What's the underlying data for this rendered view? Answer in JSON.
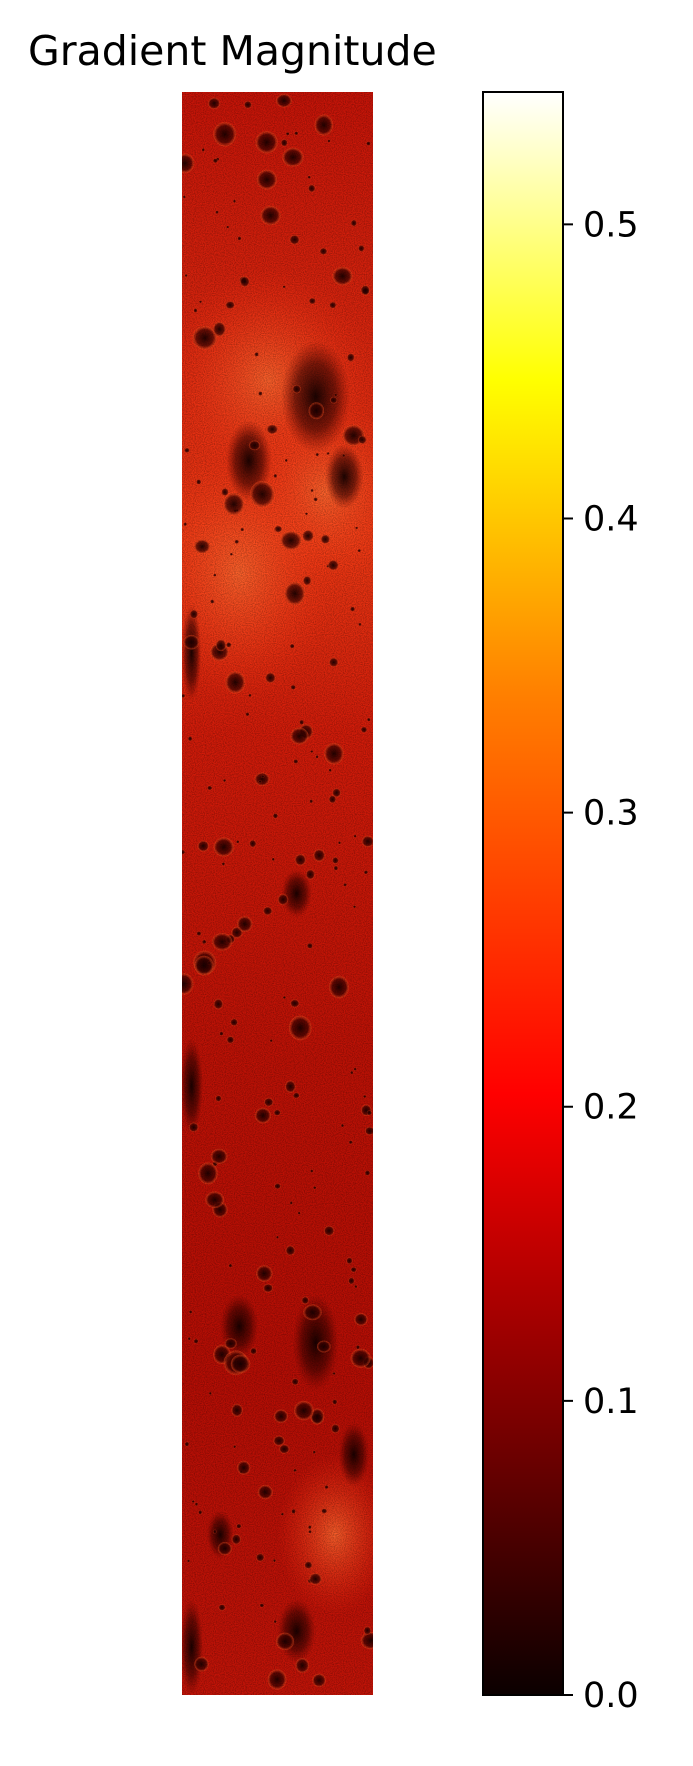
{
  "chart_data": {
    "type": "heatmap",
    "title": "Gradient Magnitude",
    "image": "lunar surface gradient magnitude map with craters (terrain strip)",
    "colormap": "hot",
    "colormap_stops": [
      "#0b0000",
      "#ff0000",
      "#ff8000",
      "#ffff00",
      "#ffffff"
    ],
    "colorbar": {
      "range": [
        0.0,
        0.545
      ],
      "ticks": [
        0.0,
        0.1,
        0.2,
        0.3,
        0.4,
        0.5
      ],
      "tick_labels": [
        "0.0",
        "0.1",
        "0.2",
        "0.3",
        "0.4",
        "0.5"
      ]
    },
    "axes_visible": false
  }
}
